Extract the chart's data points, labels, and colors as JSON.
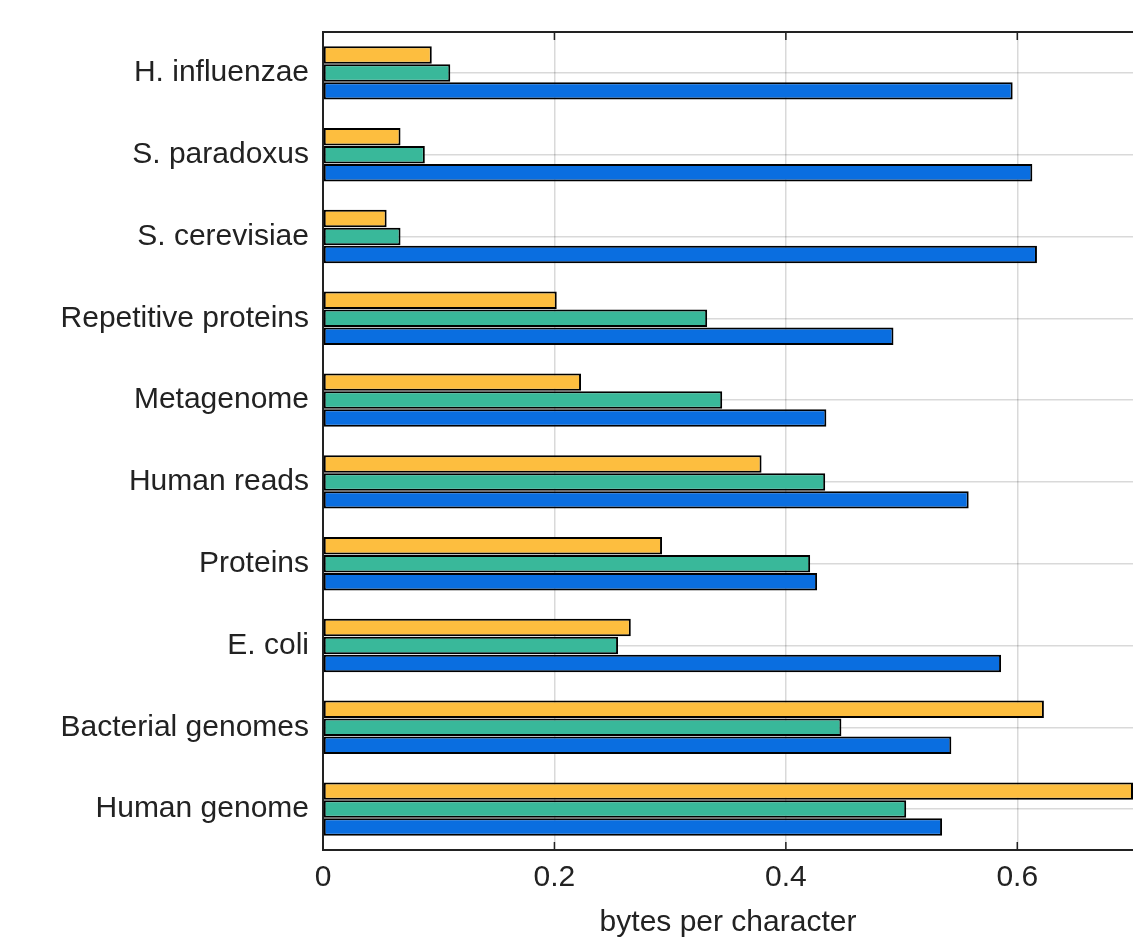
{
  "chart_data": {
    "type": "bar",
    "orientation": "horizontal",
    "xlabel": "bytes per character",
    "categories": [
      "H. influenzae",
      "S. paradoxus",
      "S. cerevisiae",
      "Repetitive proteins",
      "Metagenome",
      "Human reads",
      "Proteins",
      "E. coli",
      "Bacterial genomes",
      "Human genome"
    ],
    "series": [
      {
        "color": "#fdbe3f",
        "values": [
          0.094,
          0.067,
          0.055,
          0.202,
          0.223,
          0.379,
          0.293,
          0.266,
          0.623,
          0.7
        ]
      },
      {
        "color": "#39b89a",
        "values": [
          0.11,
          0.088,
          0.067,
          0.332,
          0.345,
          0.434,
          0.421,
          0.255,
          0.448,
          0.504
        ]
      },
      {
        "color": "#0a6ee0",
        "values": [
          0.596,
          0.613,
          0.617,
          0.493,
          0.435,
          0.558,
          0.427,
          0.586,
          0.543,
          0.535
        ]
      }
    ],
    "xlim": [
      0,
      0.7
    ],
    "xticks": [
      0,
      0.2,
      0.4,
      0.6
    ],
    "grid": true,
    "legend": false
  }
}
